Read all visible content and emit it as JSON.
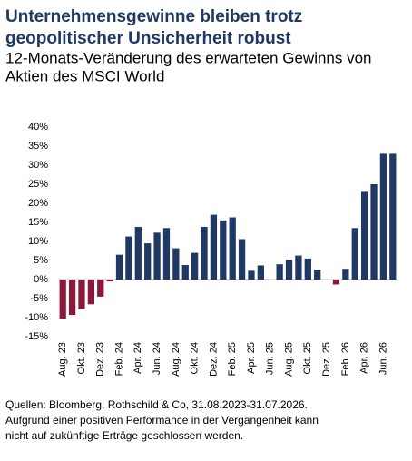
{
  "chart_data": {
    "type": "bar",
    "title": [
      "Unternehmensgewinne bleiben trotz",
      "geopolitischer Unsicherheit robust"
    ],
    "subtitle": [
      "12-Monats-Veränderung des erwarteten Gewinns von",
      "Aktien des MSCI World"
    ],
    "categories": [
      "Aug. 23",
      null,
      "Okt. 23",
      null,
      "Dez. 23",
      null,
      "Feb. 24",
      null,
      "Apr. 24",
      null,
      "Jun. 24",
      null,
      "Aug. 24",
      null,
      "Okt. 24",
      null,
      "Dez. 24",
      null,
      "Feb. 25",
      null,
      "Apr. 25",
      null,
      "Jun. 25",
      null,
      "Aug. 25",
      null,
      "Okt. 25",
      null,
      "Dez. 25",
      null,
      "Feb. 26",
      null,
      "Apr. 26",
      null,
      "Jun. 26",
      null
    ],
    "values": [
      -10.3,
      -9.3,
      -7.8,
      -6.5,
      -4.5,
      -0.5,
      6.5,
      11.3,
      13.8,
      9.5,
      12.3,
      13.5,
      8.2,
      3.8,
      7.0,
      13.8,
      17.0,
      15.5,
      16.3,
      10.6,
      2.3,
      3.7,
      0,
      4.0,
      5.2,
      6.3,
      5.5,
      2.6,
      0,
      -1.3,
      2.8,
      13.5,
      23.0,
      25.0,
      33.0,
      33.0
    ],
    "colors": {
      "positive": "#1f3864",
      "negative": "#8b1a3a"
    },
    "ylim": [
      -15,
      40
    ],
    "yticks": [
      {
        "value": -15,
        "label": "-15%"
      },
      {
        "value": -10,
        "label": "-10%"
      },
      {
        "value": -5,
        "label": "-5%"
      },
      {
        "value": 0,
        "label": "0%"
      },
      {
        "value": 5,
        "label": "5%"
      },
      {
        "value": 10,
        "label": "10%"
      },
      {
        "value": 15,
        "label": "15%"
      },
      {
        "value": 20,
        "label": "20%"
      },
      {
        "value": 25,
        "label": "25%"
      },
      {
        "value": 30,
        "label": "30%"
      },
      {
        "value": 35,
        "label": "35%"
      },
      {
        "value": 40,
        "label": "40%"
      }
    ],
    "notes": [
      "Quellen: Bloomberg, Rothschild & Co, 31.08.2023-31.07.2026.",
      "Aufgrund einer positiven Performance in der Vergangenheit kann",
      "nicht auf zukünftige Erträge geschlossen werden."
    ]
  }
}
